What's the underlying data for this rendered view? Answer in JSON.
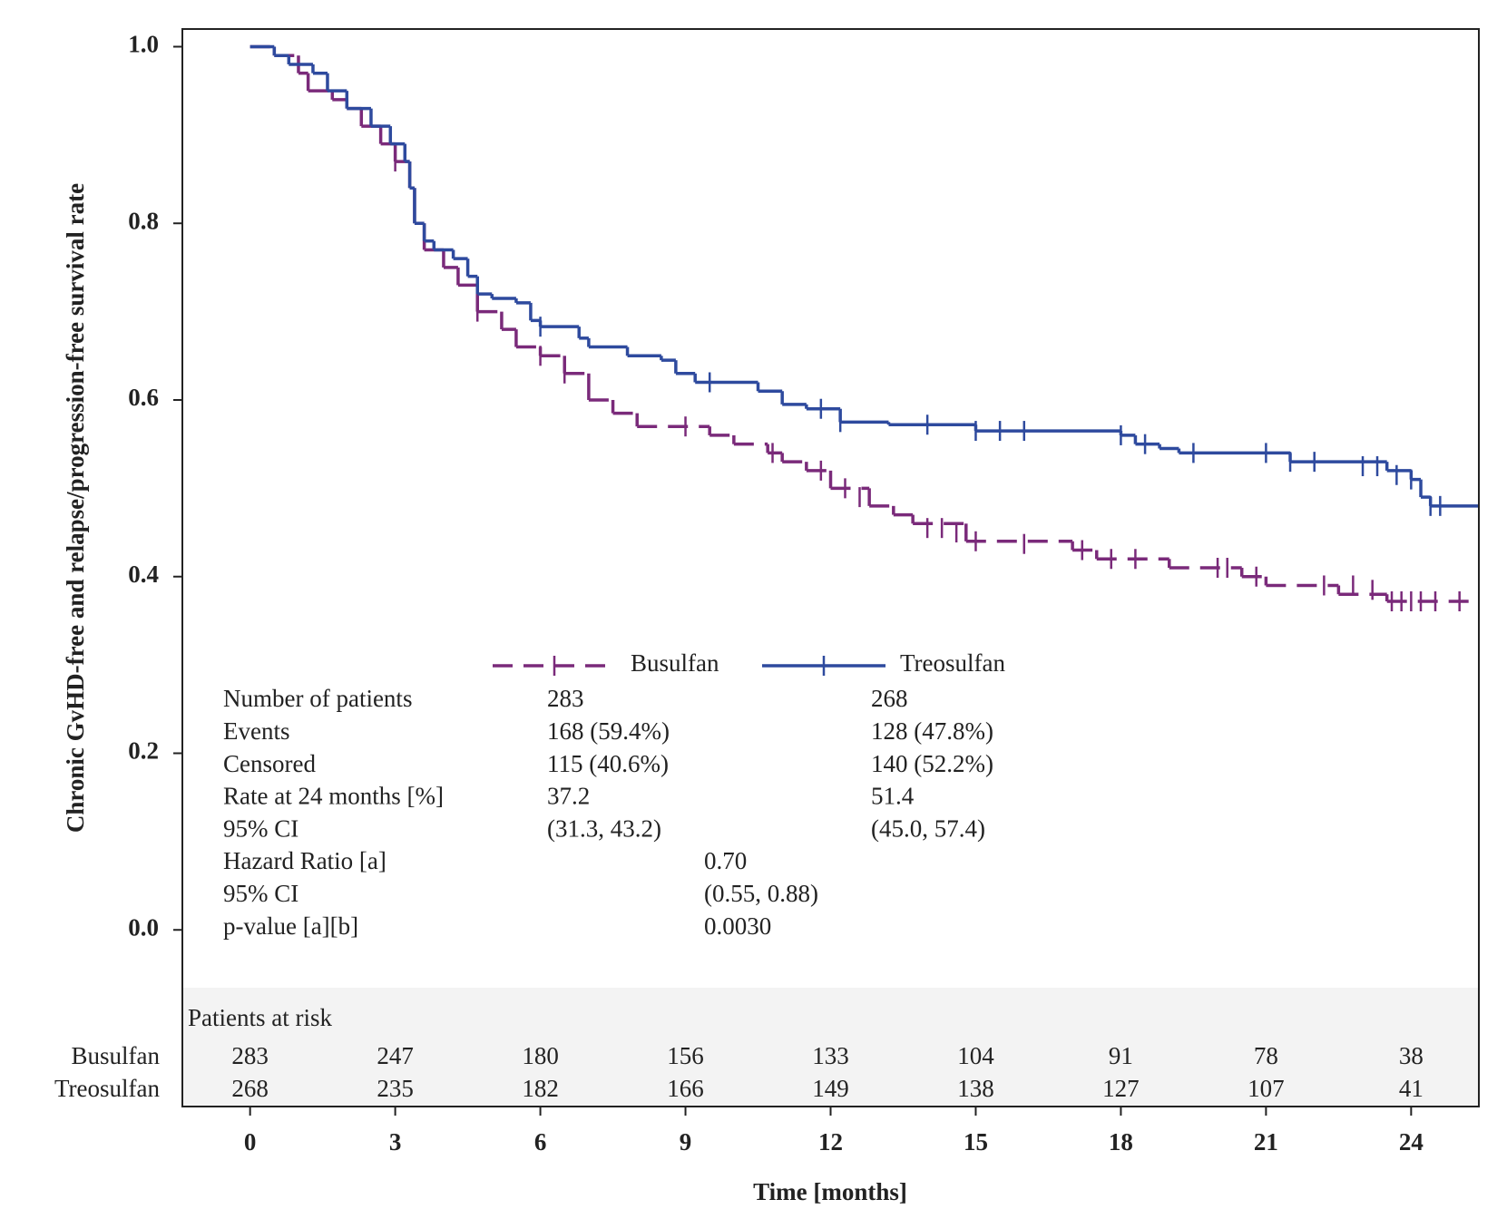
{
  "chart_data": {
    "type": "km",
    "y_label": "Chronic GvHD-free and relapse/progression-free survival rate",
    "x_label": "Time [months]",
    "xlim": [
      -1.4,
      25.4
    ],
    "ylim": [
      -0.2,
      1.02
    ],
    "xticks": [
      0,
      3,
      6,
      9,
      12,
      15,
      18,
      21,
      24
    ],
    "yticks": [
      {
        "value": 0,
        "label": "0.0"
      },
      0.2,
      0.4,
      0.6,
      0.8,
      {
        "value": 1,
        "label": "1.0"
      }
    ],
    "series": [
      {
        "name": "Busulfan",
        "color": "#7a2a7a",
        "dashed": true,
        "x": [
          0,
          0.5,
          1.0,
          1.2,
          1.7,
          2.0,
          2.3,
          2.7,
          3.0,
          3.3,
          3.4,
          3.6,
          4.0,
          4.3,
          4.7,
          5.2,
          5.5,
          6.0,
          6.5,
          7.0,
          7.5,
          8.0,
          9.5,
          10.0,
          10.7,
          11.0,
          11.5,
          12.0,
          12.8,
          13.3,
          13.7,
          14.8,
          17.0,
          17.5,
          19.0,
          20.5,
          21.0,
          22.5,
          23.5
        ],
        "values": [
          1.0,
          0.99,
          0.97,
          0.95,
          0.94,
          0.93,
          0.91,
          0.89,
          0.87,
          0.84,
          0.8,
          0.77,
          0.75,
          0.73,
          0.7,
          0.68,
          0.66,
          0.65,
          0.63,
          0.6,
          0.585,
          0.57,
          0.56,
          0.55,
          0.54,
          0.53,
          0.52,
          0.5,
          0.48,
          0.47,
          0.46,
          0.44,
          0.43,
          0.42,
          0.41,
          0.4,
          0.39,
          0.38,
          0.372
        ],
        "censor_x": [
          3.0,
          4.7,
          6.0,
          6.5,
          9.0,
          10.8,
          11.8,
          12.3,
          12.6,
          14.0,
          14.3,
          14.6,
          15.0,
          16.0,
          17.2,
          17.8,
          18.3,
          20.0,
          20.2,
          20.8,
          22.2,
          22.8,
          23.2,
          23.6,
          23.8,
          24.0,
          24.2,
          24.5,
          25.0
        ],
        "censor_values": [
          0.87,
          0.7,
          0.65,
          0.63,
          0.57,
          0.54,
          0.52,
          0.5,
          0.49,
          0.455,
          0.455,
          0.45,
          0.44,
          0.437,
          0.43,
          0.42,
          0.42,
          0.41,
          0.41,
          0.4,
          0.39,
          0.39,
          0.385,
          0.372,
          0.372,
          0.372,
          0.372,
          0.372,
          0.372
        ]
      },
      {
        "name": "Treosulfan",
        "color": "#2e4a9e",
        "dashed": false,
        "x": [
          0,
          0.5,
          0.8,
          1.3,
          1.6,
          2.0,
          2.5,
          2.9,
          3.2,
          3.3,
          3.4,
          3.6,
          3.8,
          4.2,
          4.5,
          4.7,
          5.0,
          5.5,
          5.8,
          6.0,
          6.8,
          7.0,
          7.8,
          8.5,
          8.8,
          9.2,
          10.5,
          11.0,
          11.5,
          12.2,
          13.2,
          15.0,
          18.0,
          18.3,
          18.8,
          19.2,
          21.5,
          23.5,
          24.0,
          24.2,
          24.4
        ],
        "values": [
          1.0,
          0.99,
          0.98,
          0.97,
          0.95,
          0.93,
          0.91,
          0.89,
          0.87,
          0.84,
          0.8,
          0.78,
          0.77,
          0.76,
          0.74,
          0.72,
          0.715,
          0.71,
          0.69,
          0.683,
          0.67,
          0.66,
          0.65,
          0.645,
          0.63,
          0.62,
          0.61,
          0.595,
          0.59,
          0.575,
          0.572,
          0.565,
          0.56,
          0.55,
          0.545,
          0.54,
          0.53,
          0.52,
          0.51,
          0.49,
          0.48
        ],
        "censor_x": [
          6.0,
          9.5,
          11.8,
          12.2,
          14.0,
          15.0,
          15.5,
          16.0,
          18.0,
          18.5,
          19.5,
          21.0,
          21.5,
          22.0,
          23.0,
          23.3,
          23.7,
          24.0,
          24.4,
          24.6
        ],
        "censor_values": [
          0.683,
          0.62,
          0.59,
          0.575,
          0.572,
          0.565,
          0.565,
          0.565,
          0.56,
          0.55,
          0.54,
          0.54,
          0.53,
          0.53,
          0.525,
          0.525,
          0.515,
          0.51,
          0.48,
          0.48
        ]
      }
    ],
    "stats": [
      {
        "label": "Number of patients",
        "values": [
          "283",
          "268"
        ]
      },
      {
        "label": "Events",
        "values": [
          "168 (59.4%)",
          "128 (47.8%)"
        ]
      },
      {
        "label": "Censored",
        "values": [
          "115 (40.6%)",
          "140 (52.2%)"
        ]
      },
      {
        "label": "Rate at 24 months [%]",
        "values": [
          "37.2",
          "51.4"
        ]
      },
      {
        "label": "95% CI",
        "values": [
          "(31.3, 43.2)",
          "(45.0, 57.4)"
        ]
      },
      {
        "label": "Hazard Ratio [a]",
        "values": [
          "0.70"
        ]
      },
      {
        "label": "95% CI",
        "values": [
          "(0.55, 0.88)"
        ]
      },
      {
        "label": "p-value [a][b]",
        "values": [
          "0.0030"
        ]
      }
    ],
    "at_risk": {
      "title": "Patients at risk",
      "rows": [
        {
          "name": "Busulfan",
          "values": [
            283,
            247,
            180,
            156,
            133,
            104,
            91,
            78,
            38
          ]
        },
        {
          "name": "Treosulfan",
          "values": [
            268,
            235,
            182,
            166,
            149,
            138,
            127,
            107,
            41
          ]
        }
      ]
    }
  }
}
